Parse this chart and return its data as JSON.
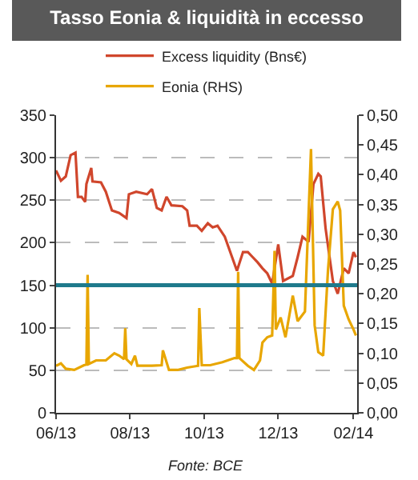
{
  "chart_data": {
    "type": "line",
    "title": "Tasso Eonia & liquidità in eccesso",
    "annotations": [
      "Fonte: BCE"
    ],
    "legend": "top",
    "grid": "y",
    "marker": "none",
    "line_style": "solid",
    "series": [
      {
        "name": "Excess liquidity (Bns€)",
        "color": "#d0462c",
        "x": [
          "2013-06-01",
          "2013-06-05",
          "2013-06-09",
          "2013-06-13",
          "2013-06-17",
          "2013-06-19",
          "2013-06-22",
          "2013-06-25",
          "2013-06-26",
          "2013-06-30",
          "2013-07-01",
          "2013-07-08",
          "2013-07-12",
          "2013-07-17",
          "2013-07-23",
          "2013-07-29",
          "2013-07-31",
          "2013-08-06",
          "2013-08-15",
          "2013-08-19",
          "2013-08-23",
          "2013-08-27",
          "2013-08-31",
          "2013-09-04",
          "2013-09-13",
          "2013-09-17",
          "2013-09-19",
          "2013-09-25",
          "2013-09-29",
          "2013-10-04",
          "2013-10-08",
          "2013-10-12",
          "2013-10-18",
          "2013-10-24",
          "2013-10-28",
          "2013-11-02",
          "2013-11-06",
          "2013-11-10",
          "2013-11-14",
          "2013-11-18",
          "2013-11-22",
          "2013-11-26",
          "2013-12-01",
          "2013-12-05",
          "2013-12-13",
          "2013-12-17",
          "2013-12-21",
          "2013-12-26",
          "2013-12-30",
          "2014-01-03",
          "2014-01-05",
          "2014-01-09",
          "2014-01-15",
          "2014-01-19",
          "2014-01-24",
          "2014-01-28",
          "2014-02-01",
          "2014-02-03"
        ],
        "values": [
          285,
          273,
          278,
          303,
          306,
          254,
          254,
          248,
          269,
          288,
          272,
          271,
          260,
          238,
          235,
          229,
          257,
          260,
          257,
          263,
          241,
          238,
          254,
          244,
          243,
          238,
          220,
          220,
          214,
          223,
          218,
          220,
          207,
          183,
          167,
          189,
          189,
          183,
          177,
          170,
          164,
          152,
          198,
          155,
          161,
          183,
          207,
          201,
          269,
          281,
          278,
          217,
          155,
          140,
          170,
          164,
          189,
          183
        ]
      },
      {
        "name": "Eonia (RHS)",
        "color": "#e8a600",
        "axis": "y2",
        "x": [
          "2013-06-01",
          "2013-06-05",
          "2013-06-09",
          "2013-06-16",
          "2013-06-24",
          "2013-06-26",
          "2013-06-27",
          "2013-06-28",
          "2013-07-04",
          "2013-07-12",
          "2013-07-19",
          "2013-07-23",
          "2013-07-27",
          "2013-07-28",
          "2013-07-29",
          "2013-08-02",
          "2013-08-05",
          "2013-08-07",
          "2013-08-19",
          "2013-08-27",
          "2013-08-28",
          "2013-09-02",
          "2013-09-09",
          "2013-09-17",
          "2013-09-26",
          "2013-09-27",
          "2013-09-29",
          "2013-10-06",
          "2013-10-16",
          "2013-10-26",
          "2013-10-28",
          "2013-10-29",
          "2013-10-30",
          "2013-11-06",
          "2013-11-11",
          "2013-11-16",
          "2013-11-18",
          "2013-11-22",
          "2013-11-26",
          "2013-11-28",
          "2013-11-29",
          "2013-12-03",
          "2013-12-07",
          "2013-12-13",
          "2013-12-17",
          "2013-12-23",
          "2013-12-28",
          "2013-12-31",
          "2014-01-03",
          "2014-01-07",
          "2014-01-11",
          "2014-01-15",
          "2014-01-19",
          "2014-01-21",
          "2014-01-24",
          "2014-01-28",
          "2014-02-01",
          "2014-02-03"
        ],
        "values": [
          0.079,
          0.083,
          0.074,
          0.072,
          0.08,
          0.081,
          0.232,
          0.082,
          0.088,
          0.088,
          0.1,
          0.096,
          0.09,
          0.142,
          0.09,
          0.082,
          0.096,
          0.079,
          0.079,
          0.08,
          0.105,
          0.072,
          0.072,
          0.076,
          0.079,
          0.176,
          0.08,
          0.08,
          0.085,
          0.092,
          0.092,
          0.237,
          0.092,
          0.079,
          0.072,
          0.088,
          0.118,
          0.127,
          0.13,
          0.272,
          0.14,
          0.16,
          0.127,
          0.197,
          0.154,
          0.17,
          0.443,
          0.147,
          0.102,
          0.096,
          0.24,
          0.342,
          0.355,
          0.34,
          0.18,
          0.157,
          0.14,
          0.13
        ]
      }
    ],
    "xlim": [
      "2013-06-01",
      "2014-02-04"
    ],
    "xticks": [
      {
        "value": "2013-06-01",
        "label": "06/13"
      },
      {
        "value": "2013-08-01",
        "label": "08/13"
      },
      {
        "value": "2013-10-01",
        "label": "10/13"
      },
      {
        "value": "2013-12-01",
        "label": "12/13"
      },
      {
        "value": "2014-02-01",
        "label": "02/14"
      }
    ],
    "ylim": [
      0,
      350
    ],
    "yticks": [
      0,
      50,
      100,
      150,
      200,
      250,
      300,
      350
    ],
    "y2lim": [
      0,
      0.5
    ],
    "y2ticks": [
      {
        "value": 0,
        "label": "0,00"
      },
      {
        "value": 0.05,
        "label": "0,05"
      },
      {
        "value": 0.1,
        "label": "0,10"
      },
      {
        "value": 0.15,
        "label": "0,15"
      },
      {
        "value": 0.2,
        "label": "0,20"
      },
      {
        "value": 0.25,
        "label": "0,25"
      },
      {
        "value": 0.3,
        "label": "0,30"
      },
      {
        "value": 0.35,
        "label": "0,35"
      },
      {
        "value": 0.4,
        "label": "0,40"
      },
      {
        "value": 0.45,
        "label": "0,45"
      },
      {
        "value": 0.5,
        "label": "0,50"
      }
    ],
    "ref_lines": [
      {
        "axis": "y",
        "value": 150,
        "color": "#1f7a8c"
      }
    ]
  }
}
